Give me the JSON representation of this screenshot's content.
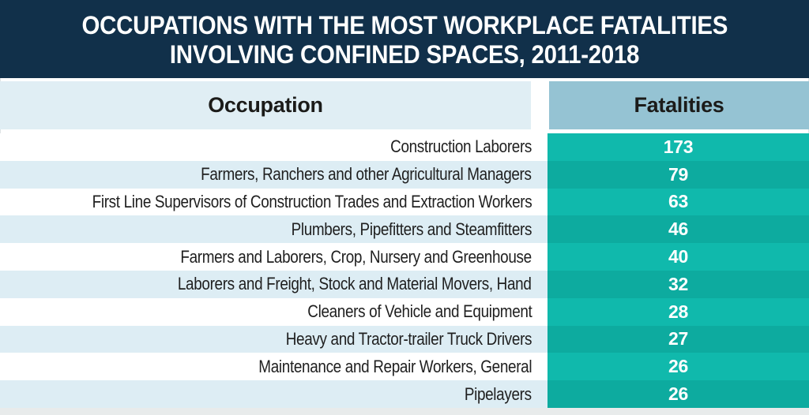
{
  "title": {
    "line1": "OCCUPATIONS WITH THE MOST WORKPLACE FATALITIES",
    "line2": "INVOLVING CONFINED SPACES, 2011-2018"
  },
  "table": {
    "columns": {
      "occupation": "Occupation",
      "fatalities": "Fatalities"
    },
    "rows": [
      {
        "occupation": "Construction Laborers",
        "fatalities": "173"
      },
      {
        "occupation": "Farmers, Ranchers and other Agricultural Managers",
        "fatalities": "79"
      },
      {
        "occupation": "First Line Supervisors of Construction Trades and Extraction Workers",
        "fatalities": "63"
      },
      {
        "occupation": "Plumbers, Pipefitters and Steamfitters",
        "fatalities": "46"
      },
      {
        "occupation": "Farmers and Laborers, Crop, Nursery and Greenhouse",
        "fatalities": "40"
      },
      {
        "occupation": "Laborers and Freight, Stock and Material Movers, Hand",
        "fatalities": "32"
      },
      {
        "occupation": "Cleaners of Vehicle and Equipment",
        "fatalities": "28"
      },
      {
        "occupation": "Heavy and Tractor-trailer Truck Drivers",
        "fatalities": "27"
      },
      {
        "occupation": "Maintenance and Repair Workers, General",
        "fatalities": "26"
      },
      {
        "occupation": "Pipelayers",
        "fatalities": "26"
      }
    ]
  },
  "colors": {
    "banner_navy": "#11304a",
    "occupation_header_blue": "#e0eef4",
    "fatalities_header_blue": "#95c3d3",
    "row_alt_blue": "#ddedf4",
    "teal_bright": "#10b9ac",
    "teal_dark": "#0dab9f",
    "text_dark": "#1f1f1f",
    "text_white": "#ffffff"
  },
  "chart_data": {
    "type": "table",
    "title": "Occupations with the Most Workplace Fatalities Involving Confined Spaces, 2011-2018",
    "columns": [
      "Occupation",
      "Fatalities"
    ],
    "categories": [
      "Construction Laborers",
      "Farmers, Ranchers and other Agricultural Managers",
      "First Line Supervisors of Construction Trades and Extraction Workers",
      "Plumbers, Pipefitters and Steamfitters",
      "Farmers and Laborers, Crop, Nursery and Greenhouse",
      "Laborers and Freight, Stock and Material Movers, Hand",
      "Cleaners of Vehicle and Equipment",
      "Heavy and Tractor-trailer Truck Drivers",
      "Maintenance and Repair Workers, General",
      "Pipelayers"
    ],
    "values": [
      173,
      79,
      63,
      46,
      40,
      32,
      28,
      27,
      26,
      26
    ]
  }
}
